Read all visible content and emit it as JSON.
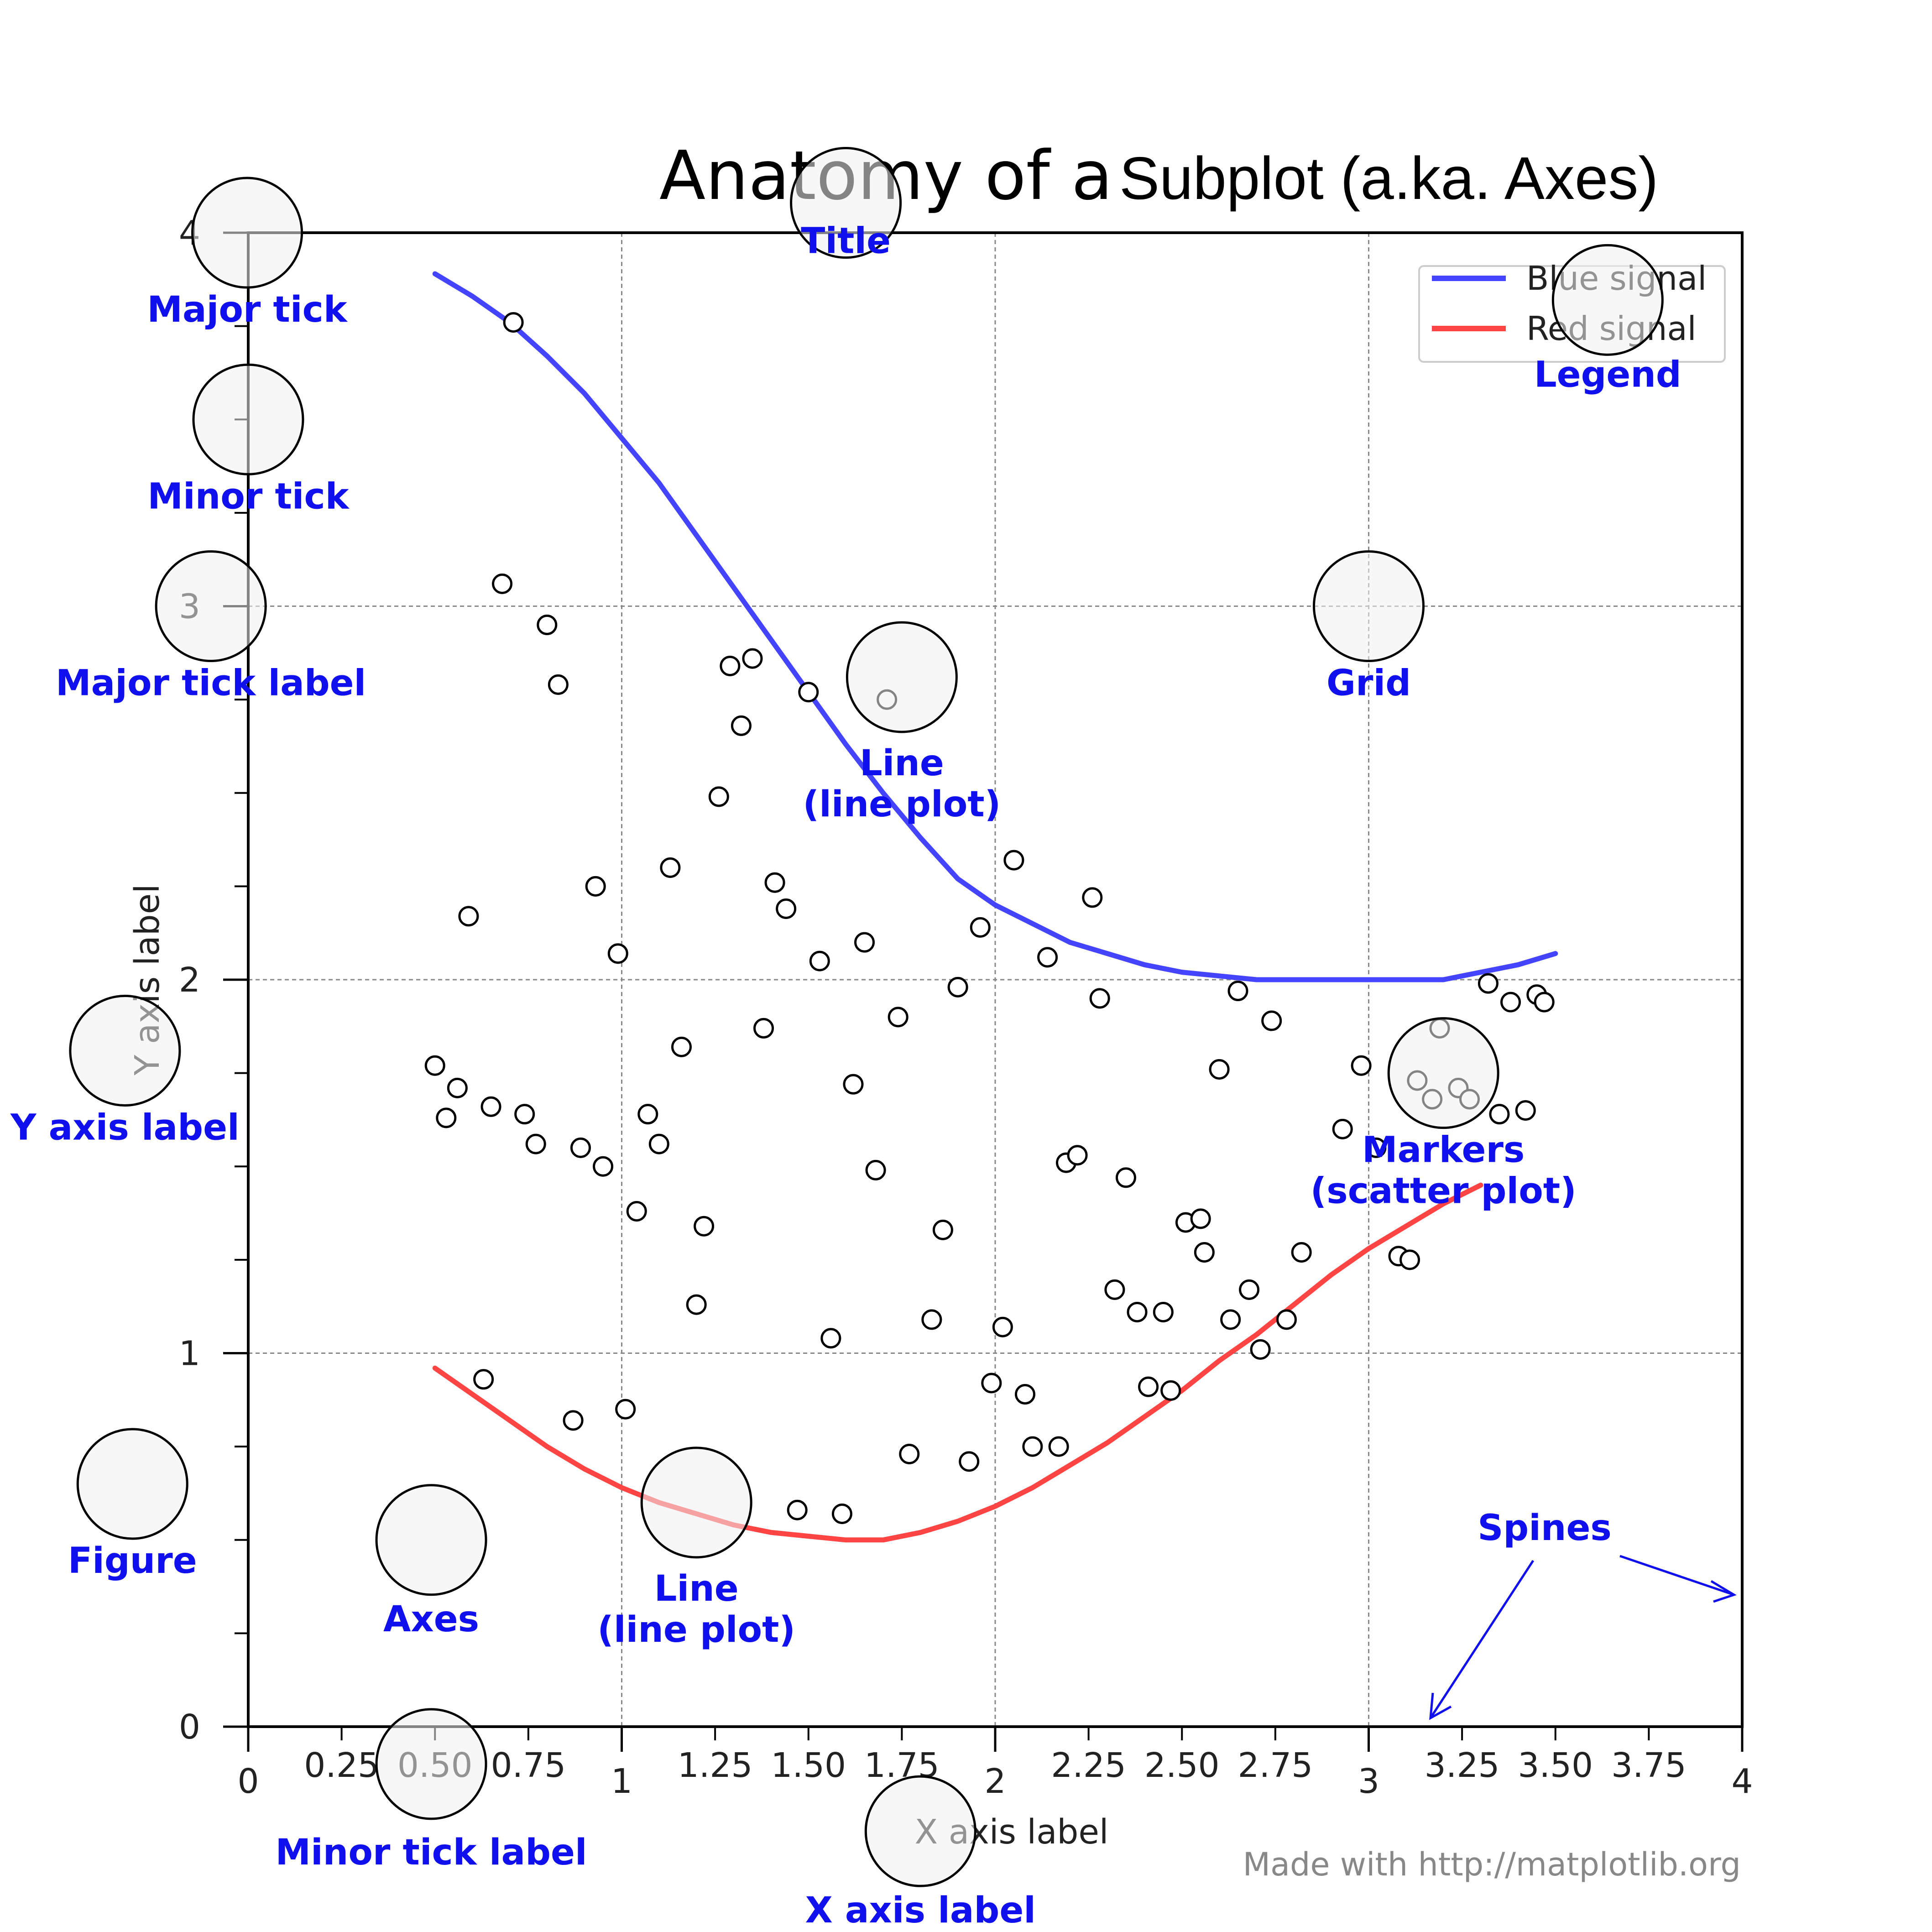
{
  "chart_data": {
    "type": "line",
    "title": "Anatomy of a Subplot (a.ka. Axes)",
    "title_part1": "Anatomy of a",
    "title_part2": "Subplot (a.ka. Axes)",
    "xlabel": "X axis label",
    "ylabel": "Y axis label",
    "xlim": [
      0,
      4
    ],
    "ylim": [
      0,
      4
    ],
    "grid": true,
    "legend_position": "top-right",
    "x_major_ticks": [
      0,
      1,
      2,
      3,
      4
    ],
    "x_major_tick_labels": [
      "0",
      "1",
      "2",
      "3",
      "4"
    ],
    "x_minor_ticks": [
      0.25,
      0.5,
      0.75,
      1.25,
      1.5,
      1.75,
      2.25,
      2.5,
      2.75,
      3.25,
      3.5,
      3.75
    ],
    "x_minor_tick_labels": [
      "0.25",
      "0.50",
      "0.75",
      "1.25",
      "1.50",
      "1.75",
      "2.25",
      "2.50",
      "2.75",
      "3.25",
      "3.50",
      "3.75"
    ],
    "y_major_ticks": [
      0,
      1,
      2,
      3,
      4
    ],
    "y_major_tick_labels": [
      "0",
      "1",
      "2",
      "3",
      "4"
    ],
    "y_minor_ticks": [
      0.25,
      0.5,
      0.75,
      1.25,
      1.5,
      1.75,
      2.25,
      2.5,
      2.75,
      3.25,
      3.5,
      3.75
    ],
    "series": [
      {
        "name": "Blue signal",
        "color": "#4444ff",
        "x": [
          0.5,
          0.6,
          0.7,
          0.8,
          0.9,
          1.0,
          1.1,
          1.2,
          1.3,
          1.4,
          1.5,
          1.6,
          1.7,
          1.8,
          1.9,
          2.0,
          2.1,
          2.2,
          2.3,
          2.4,
          2.5,
          2.6,
          2.7,
          2.8,
          2.9,
          3.0,
          3.1,
          3.2,
          3.3,
          3.4,
          3.5
        ],
        "y": [
          3.89,
          3.83,
          3.76,
          3.67,
          3.57,
          3.45,
          3.33,
          3.19,
          3.05,
          2.91,
          2.77,
          2.63,
          2.5,
          2.38,
          2.27,
          2.2,
          2.15,
          2.1,
          2.07,
          2.04,
          2.02,
          2.01,
          2.0,
          2.0,
          2.0,
          2.0,
          2.0,
          2.0,
          2.02,
          2.04,
          2.07
        ]
      },
      {
        "name": "Red signal",
        "color": "#ff4444",
        "x": [
          0.5,
          0.6,
          0.7,
          0.8,
          0.9,
          1.0,
          1.1,
          1.2,
          1.3,
          1.4,
          1.5,
          1.6,
          1.7,
          1.8,
          1.9,
          2.0,
          2.1,
          2.2,
          2.3,
          2.4,
          2.5,
          2.6,
          2.7,
          2.8,
          2.9,
          3.0,
          3.1,
          3.2,
          3.3
        ],
        "y": [
          0.96,
          0.89,
          0.82,
          0.75,
          0.69,
          0.64,
          0.6,
          0.57,
          0.54,
          0.52,
          0.51,
          0.5,
          0.5,
          0.52,
          0.55,
          0.59,
          0.64,
          0.7,
          0.76,
          0.83,
          0.9,
          0.98,
          1.05,
          1.13,
          1.21,
          1.28,
          1.34,
          1.4,
          1.45
        ]
      }
    ],
    "scatter_points": [
      [
        0.71,
        3.76
      ],
      [
        0.68,
        3.06
      ],
      [
        0.8,
        2.95
      ],
      [
        0.83,
        2.79
      ],
      [
        1.29,
        2.84
      ],
      [
        1.35,
        2.86
      ],
      [
        1.32,
        2.68
      ],
      [
        1.5,
        2.77
      ],
      [
        1.71,
        2.75
      ],
      [
        1.26,
        2.49
      ],
      [
        1.13,
        2.3
      ],
      [
        0.93,
        2.25
      ],
      [
        0.59,
        2.17
      ],
      [
        1.41,
        2.26
      ],
      [
        1.44,
        2.19
      ],
      [
        1.53,
        2.05
      ],
      [
        1.65,
        2.1
      ],
      [
        0.99,
        2.07
      ],
      [
        2.05,
        2.32
      ],
      [
        2.26,
        2.22
      ],
      [
        1.96,
        2.14
      ],
      [
        2.14,
        2.06
      ],
      [
        1.9,
        1.98
      ],
      [
        2.28,
        1.95
      ],
      [
        1.16,
        1.82
      ],
      [
        1.38,
        1.87
      ],
      [
        1.74,
        1.9
      ],
      [
        2.65,
        1.97
      ],
      [
        2.74,
        1.89
      ],
      [
        2.6,
        1.76
      ],
      [
        3.32,
        1.99
      ],
      [
        3.38,
        1.94
      ],
      [
        3.45,
        1.96
      ],
      [
        3.47,
        1.94
      ],
      [
        3.19,
        1.87
      ],
      [
        3.17,
        1.68
      ],
      [
        0.5,
        1.77
      ],
      [
        0.56,
        1.71
      ],
      [
        0.53,
        1.63
      ],
      [
        0.65,
        1.66
      ],
      [
        0.74,
        1.64
      ],
      [
        0.77,
        1.56
      ],
      [
        0.89,
        1.55
      ],
      [
        0.95,
        1.5
      ],
      [
        1.07,
        1.64
      ],
      [
        1.1,
        1.56
      ],
      [
        1.62,
        1.72
      ],
      [
        1.68,
        1.49
      ],
      [
        2.19,
        1.51
      ],
      [
        2.22,
        1.53
      ],
      [
        2.35,
        1.47
      ],
      [
        2.98,
        1.77
      ],
      [
        2.93,
        1.6
      ],
      [
        3.02,
        1.55
      ],
      [
        3.13,
        1.73
      ],
      [
        3.24,
        1.71
      ],
      [
        3.27,
        1.68
      ],
      [
        3.35,
        1.64
      ],
      [
        3.42,
        1.65
      ],
      [
        1.04,
        1.38
      ],
      [
        1.22,
        1.34
      ],
      [
        1.86,
        1.33
      ],
      [
        2.51,
        1.35
      ],
      [
        2.55,
        1.36
      ],
      [
        2.56,
        1.27
      ],
      [
        2.82,
        1.27
      ],
      [
        3.08,
        1.26
      ],
      [
        3.11,
        1.25
      ],
      [
        1.2,
        1.13
      ],
      [
        1.56,
        1.04
      ],
      [
        1.83,
        1.09
      ],
      [
        2.02,
        1.07
      ],
      [
        2.32,
        1.17
      ],
      [
        2.38,
        1.11
      ],
      [
        2.45,
        1.11
      ],
      [
        2.63,
        1.09
      ],
      [
        2.68,
        1.17
      ],
      [
        2.78,
        1.09
      ],
      [
        2.71,
        1.01
      ],
      [
        0.63,
        0.93
      ],
      [
        0.87,
        0.82
      ],
      [
        1.01,
        0.85
      ],
      [
        1.99,
        0.92
      ],
      [
        2.08,
        0.89
      ],
      [
        2.41,
        0.91
      ],
      [
        2.47,
        0.9
      ],
      [
        1.77,
        0.73
      ],
      [
        1.93,
        0.71
      ],
      [
        2.1,
        0.75
      ],
      [
        2.17,
        0.75
      ],
      [
        1.47,
        0.58
      ],
      [
        1.59,
        0.57
      ]
    ]
  },
  "annotations": [
    {
      "label": "Major tick",
      "target_x": -0.003,
      "target_y": 4.0
    },
    {
      "label": "Minor tick",
      "target_x": 0.0,
      "target_y": 3.5
    },
    {
      "label": "Major tick label",
      "target_x": -0.1,
      "target_y": 3.0
    },
    {
      "label": "Title",
      "target_x": 1.6,
      "target_y": 4.08
    },
    {
      "label": "Legend",
      "target_x": 3.64,
      "target_y": 3.82
    },
    {
      "label": "Grid",
      "target_x": 3.0,
      "target_y": 3.0
    },
    {
      "label": "Line (line plot)",
      "target_x": 1.75,
      "target_y": 2.81
    },
    {
      "label": "Y axis label",
      "target_x": -0.33,
      "target_y": 1.81
    },
    {
      "label": "Markers (scatter plot)",
      "target_x": 3.2,
      "target_y": 1.75
    },
    {
      "label": "Figure",
      "target_x": -0.31,
      "target_y": 0.65
    },
    {
      "label": "Axes",
      "target_x": 0.49,
      "target_y": 0.5
    },
    {
      "label": "Line (line plot)",
      "target_x": 1.2,
      "target_y": 0.6
    },
    {
      "label": "Minor tick label",
      "target_x": 0.49,
      "target_y": -0.1
    },
    {
      "label": "X axis label",
      "target_x": 1.8,
      "target_y": -0.28
    }
  ],
  "spines_label": "Spines",
  "credit": "Made with http://matplotlib.org"
}
